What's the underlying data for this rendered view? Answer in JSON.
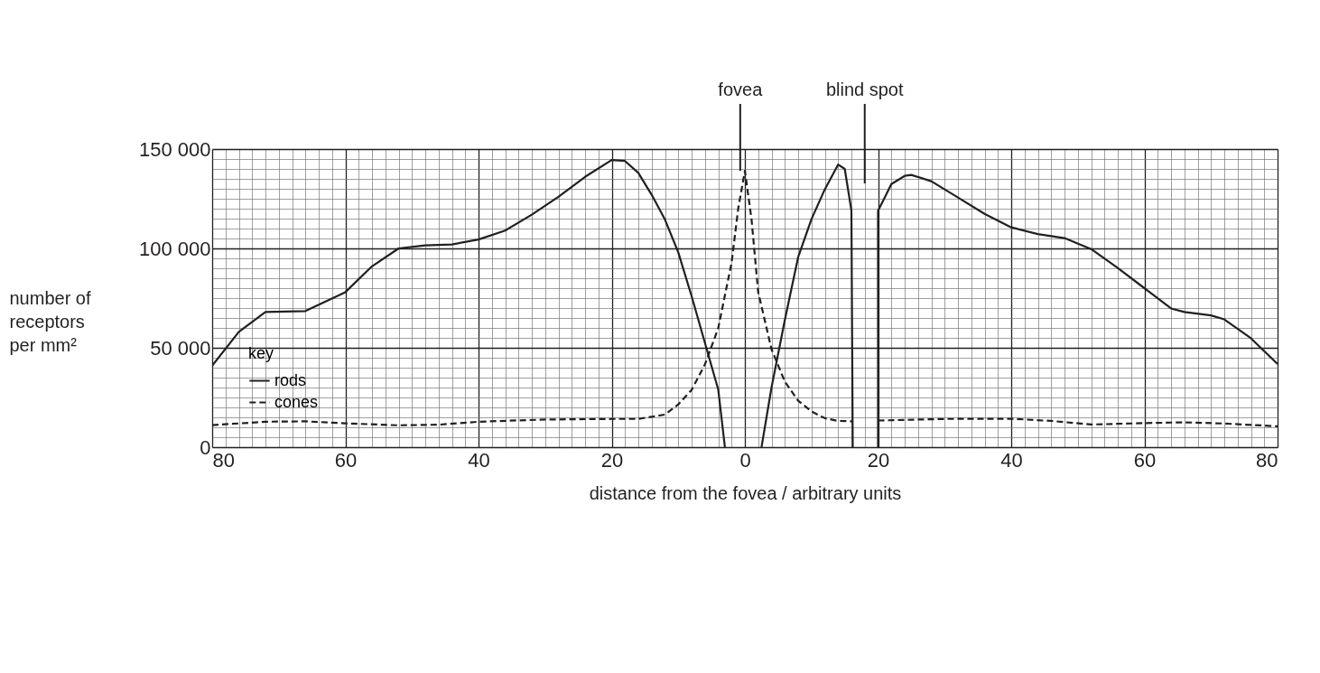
{
  "chart_data": {
    "type": "line",
    "xlabel": "distance from the fovea / arbitrary units",
    "ylabel": "number of\nreceptors\nper mm²",
    "legend_title": "key",
    "legend": "bottom left",
    "grid": true,
    "xlim": [
      -80,
      80
    ],
    "ylim": [
      0,
      150000
    ],
    "xticks": [
      {
        "value": -80,
        "label": "80"
      },
      {
        "value": -78,
        "label": null
      },
      {
        "value": -76,
        "label": null
      },
      {
        "value": -74,
        "label": null
      },
      {
        "value": -72,
        "label": null
      },
      {
        "value": -70,
        "label": null
      },
      {
        "value": -68,
        "label": null
      },
      {
        "value": -66,
        "label": null
      },
      {
        "value": -64,
        "label": null
      },
      {
        "value": -62,
        "label": null
      },
      {
        "value": -60,
        "label": "60"
      },
      {
        "value": -58,
        "label": null
      },
      {
        "value": -56,
        "label": null
      },
      {
        "value": -54,
        "label": null
      },
      {
        "value": -52,
        "label": null
      },
      {
        "value": -50,
        "label": null
      },
      {
        "value": -48,
        "label": null
      },
      {
        "value": -46,
        "label": null
      },
      {
        "value": -44,
        "label": null
      },
      {
        "value": -42,
        "label": null
      },
      {
        "value": -40,
        "label": "40"
      },
      {
        "value": -38,
        "label": null
      },
      {
        "value": -36,
        "label": null
      },
      {
        "value": -34,
        "label": null
      },
      {
        "value": -32,
        "label": null
      },
      {
        "value": -30,
        "label": null
      },
      {
        "value": -28,
        "label": null
      },
      {
        "value": -26,
        "label": null
      },
      {
        "value": -24,
        "label": null
      },
      {
        "value": -22,
        "label": null
      },
      {
        "value": -20,
        "label": "20"
      },
      {
        "value": -18,
        "label": null
      },
      {
        "value": -16,
        "label": null
      },
      {
        "value": -14,
        "label": null
      },
      {
        "value": -12,
        "label": null
      },
      {
        "value": -10,
        "label": null
      },
      {
        "value": -8,
        "label": null
      },
      {
        "value": -6,
        "label": null
      },
      {
        "value": -4,
        "label": null
      },
      {
        "value": -2,
        "label": null
      },
      0,
      {
        "value": 2,
        "label": null
      },
      {
        "value": 4,
        "label": null
      },
      {
        "value": 6,
        "label": null
      },
      {
        "value": 8,
        "label": null
      },
      {
        "value": 10,
        "label": null
      },
      {
        "value": 12,
        "label": null
      },
      {
        "value": 14,
        "label": null
      },
      {
        "value": 16,
        "label": null
      },
      {
        "value": 18,
        "label": null
      },
      20,
      {
        "value": 22,
        "label": null
      },
      {
        "value": 24,
        "label": null
      },
      {
        "value": 26,
        "label": null
      },
      {
        "value": 28,
        "label": null
      },
      {
        "value": 30,
        "label": null
      },
      {
        "value": 32,
        "label": null
      },
      {
        "value": 34,
        "label": null
      },
      {
        "value": 36,
        "label": null
      },
      {
        "value": 38,
        "label": null
      },
      40,
      {
        "value": 42,
        "label": null
      },
      {
        "value": 44,
        "label": null
      },
      {
        "value": 46,
        "label": null
      },
      {
        "value": 48,
        "label": null
      },
      {
        "value": 50,
        "label": null
      },
      {
        "value": 52,
        "label": null
      },
      {
        "value": 54,
        "label": null
      },
      {
        "value": 56,
        "label": null
      },
      {
        "value": 58,
        "label": null
      },
      60,
      {
        "value": 62,
        "label": null
      },
      {
        "value": 64,
        "label": null
      },
      {
        "value": 66,
        "label": null
      },
      {
        "value": 68,
        "label": null
      },
      {
        "value": 70,
        "label": null
      },
      {
        "value": 72,
        "label": null
      },
      {
        "value": 74,
        "label": null
      },
      {
        "value": 76,
        "label": null
      },
      {
        "value": 78,
        "label": null
      },
      80
    ],
    "yticks": [
      0,
      {
        "value": 5000,
        "label": null
      },
      {
        "value": 10000,
        "label": null
      },
      {
        "value": 15000,
        "label": null
      },
      {
        "value": 20000,
        "label": null
      },
      {
        "value": 25000,
        "label": null
      },
      {
        "value": 30000,
        "label": null
      },
      {
        "value": 35000,
        "label": null
      },
      {
        "value": 40000,
        "label": null
      },
      {
        "value": 45000,
        "label": null
      },
      {
        "value": 50000,
        "label": "50 000"
      },
      {
        "value": 55000,
        "label": null
      },
      {
        "value": 60000,
        "label": null
      },
      {
        "value": 65000,
        "label": null
      },
      {
        "value": 70000,
        "label": null
      },
      {
        "value": 75000,
        "label": null
      },
      {
        "value": 80000,
        "label": null
      },
      {
        "value": 85000,
        "label": null
      },
      {
        "value": 90000,
        "label": null
      },
      {
        "value": 95000,
        "label": null
      },
      {
        "value": 100000,
        "label": "100 000"
      },
      {
        "value": 105000,
        "label": null
      },
      {
        "value": 110000,
        "label": null
      },
      {
        "value": 115000,
        "label": null
      },
      {
        "value": 120000,
        "label": null
      },
      {
        "value": 125000,
        "label": null
      },
      {
        "value": 130000,
        "label": null
      },
      {
        "value": 135000,
        "label": null
      },
      {
        "value": 140000,
        "label": null
      },
      {
        "value": 145000,
        "label": null
      },
      {
        "value": 150000,
        "label": "150 000"
      }
    ],
    "series": [
      {
        "name": "rods",
        "color": "#231f20",
        "line_style": "solid",
        "x": [
          -80,
          -76,
          -72,
          -66,
          -60,
          -56,
          -52,
          -48,
          -44,
          -40,
          -36,
          -32,
          -28,
          -24,
          -20,
          -18,
          -16,
          -14,
          -12,
          -10,
          -8,
          -6,
          -4,
          -3,
          0,
          2.5,
          4,
          6,
          8,
          10,
          12,
          14,
          15,
          16,
          16.2,
          18,
          20,
          20,
          21,
          22,
          24,
          25,
          28,
          32,
          36,
          40,
          44,
          48,
          52,
          56,
          60,
          64,
          66,
          70,
          72,
          76,
          80
        ],
        "values": [
          41000,
          58000,
          68000,
          68500,
          78000,
          91000,
          100000,
          101500,
          102000,
          104500,
          109000,
          117000,
          126000,
          136000,
          144500,
          144000,
          138000,
          127000,
          114500,
          98000,
          76000,
          52500,
          29000,
          0,
          null,
          0,
          30000,
          64000,
          95600,
          114700,
          129700,
          142200,
          140000,
          119000,
          0,
          null,
          0,
          119000,
          125600,
          132400,
          136500,
          137000,
          133800,
          125600,
          117400,
          110600,
          107200,
          105200,
          99700,
          90200,
          80000,
          69800,
          68000,
          66300,
          64300,
          54800,
          41800
        ]
      },
      {
        "name": "cones",
        "color": "#231f20",
        "line_style": "dashed",
        "x": [
          -80,
          -72,
          -66,
          -60,
          -52,
          -46,
          -40,
          -30,
          -20,
          -16,
          -12,
          -10,
          -8,
          -6,
          -4,
          -2,
          -1,
          0,
          1,
          2,
          4,
          6,
          8,
          10,
          12,
          14,
          16.2,
          18,
          20,
          30,
          40,
          46,
          52,
          60,
          66,
          72,
          80
        ],
        "values": [
          11100,
          12800,
          13000,
          12000,
          11000,
          11300,
          12800,
          13900,
          14200,
          14200,
          16400,
          21500,
          28800,
          41600,
          59900,
          92700,
          120000,
          139000,
          114700,
          78000,
          49300,
          33000,
          23400,
          18000,
          14600,
          13200,
          13000,
          null,
          13400,
          14200,
          14300,
          13200,
          11400,
          12100,
          12500,
          11900,
          10500
        ]
      }
    ],
    "annotations": [
      {
        "text": "fovea",
        "x": -0.7,
        "y": 139000
      },
      "blind spot"
    ]
  }
}
